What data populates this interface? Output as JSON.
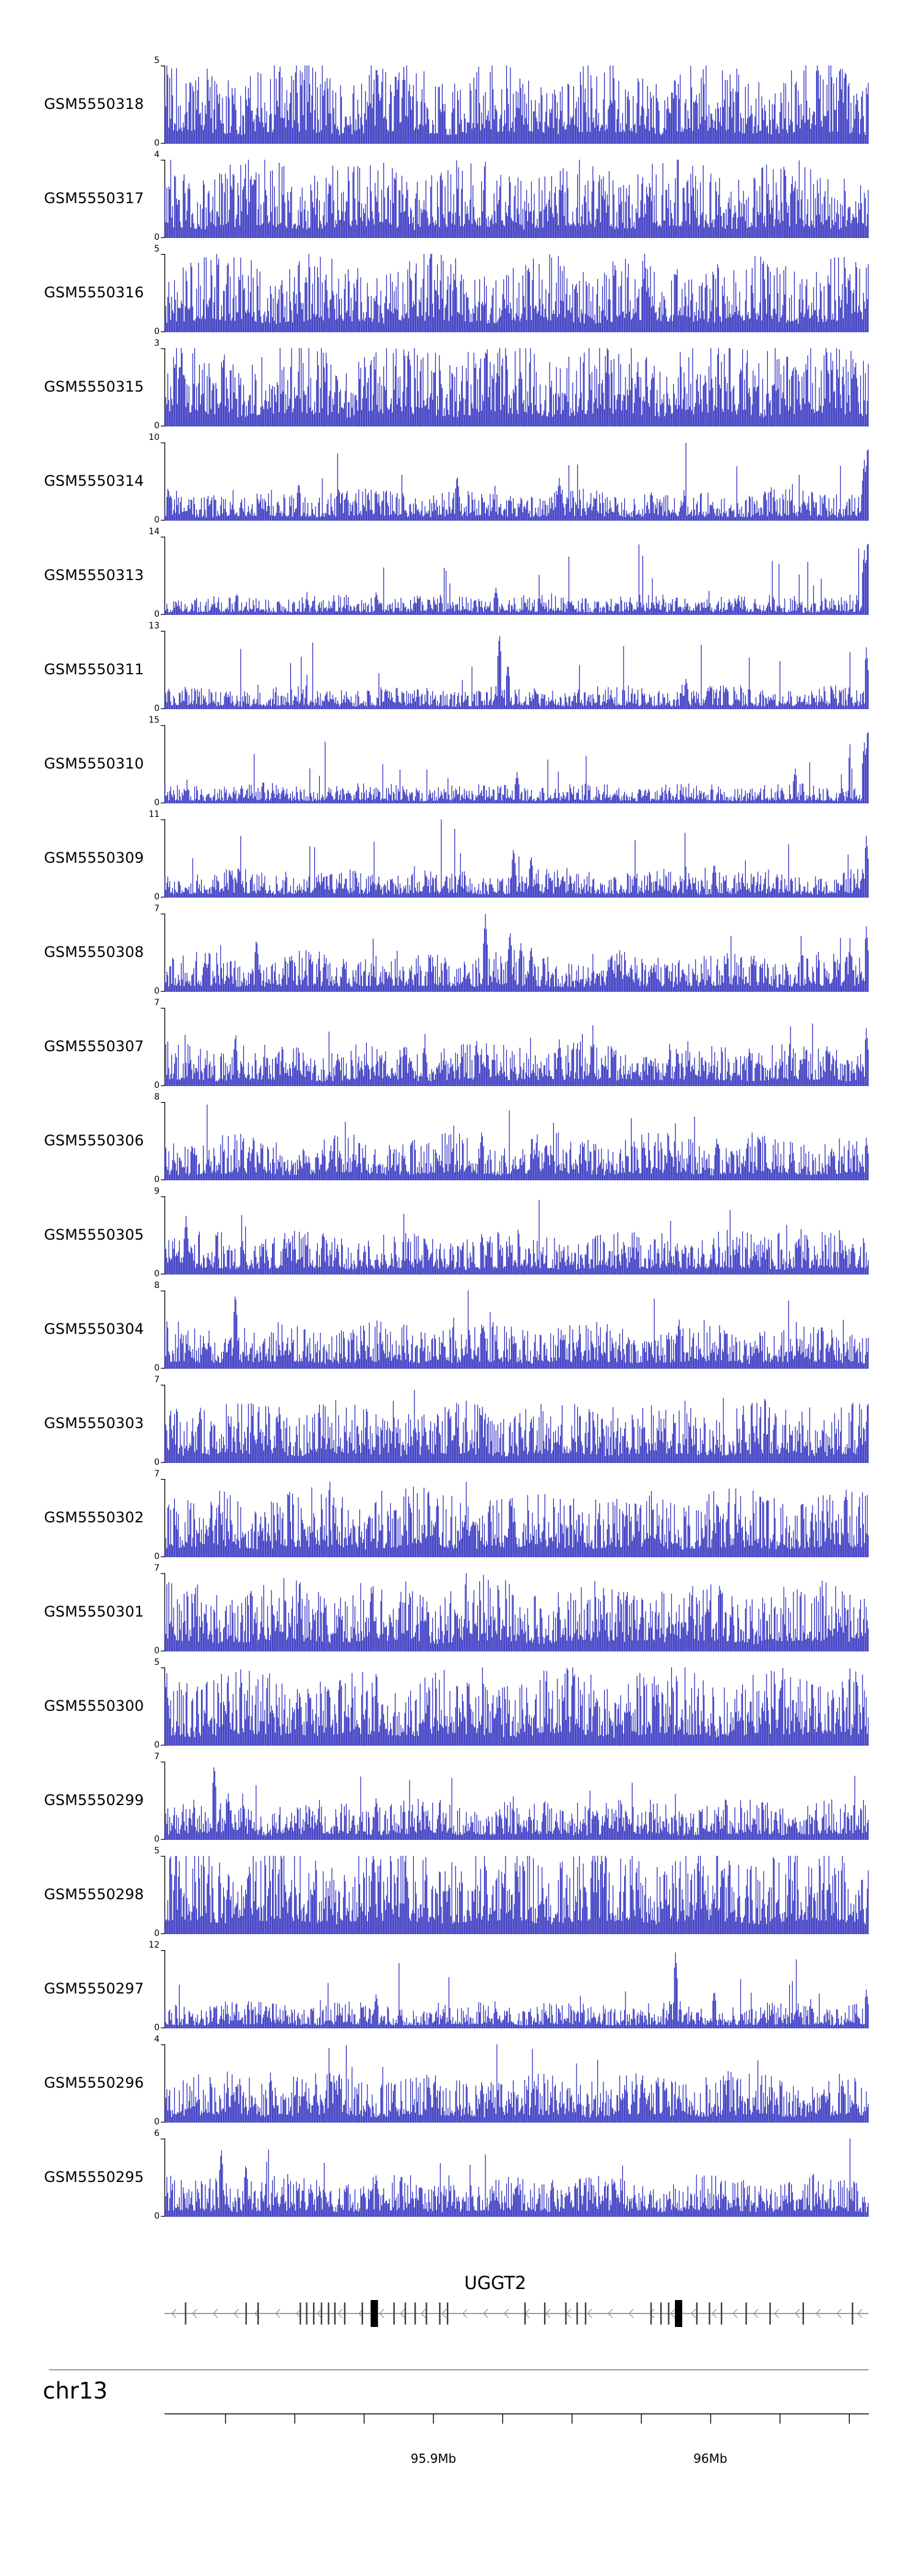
{
  "chart_data": {
    "type": "area",
    "title": "",
    "color": "#2121bb",
    "description": "Genome browser coverage tracks over chr13 around gene UGGT2",
    "x_axis": {
      "chromosome": "chr13",
      "start_mb": 95.803,
      "end_mb": 96.057,
      "tick_interval_mb": 0.025,
      "labeled_ticks": [
        {
          "mb": 95.9,
          "label": "95.9Mb"
        },
        {
          "mb": 96.0,
          "label": "96Mb"
        }
      ]
    },
    "gene_track": {
      "name": "UGGT2",
      "strand": "-",
      "exons_thin": [
        0.03,
        0.116,
        0.133,
        0.193,
        0.202,
        0.212,
        0.223,
        0.233,
        0.242,
        0.256,
        0.281,
        0.326,
        0.342,
        0.356,
        0.372,
        0.391,
        0.402,
        0.512,
        0.54,
        0.57,
        0.586,
        0.598,
        0.691,
        0.705,
        0.716,
        0.756,
        0.774,
        0.791,
        0.826,
        0.86,
        0.907,
        0.977
      ],
      "exons_thick": [
        0.298,
        0.73
      ]
    },
    "tracks": [
      {
        "label": "GSM5550318",
        "ymin": 0,
        "ymax": 5,
        "signal_profile": {
          "base": 0.52,
          "seed": 1
        },
        "spikes": []
      },
      {
        "label": "GSM5550317",
        "ymin": 0,
        "ymax": 4,
        "signal_profile": {
          "base": 0.5,
          "seed": 2
        },
        "spikes": []
      },
      {
        "label": "GSM5550316",
        "ymin": 0,
        "ymax": 5,
        "signal_profile": {
          "base": 0.5,
          "seed": 3
        },
        "spikes": []
      },
      {
        "label": "GSM5550315",
        "ymin": 0,
        "ymax": 3,
        "signal_profile": {
          "base": 0.55,
          "seed": 4
        },
        "spikes": []
      },
      {
        "label": "GSM5550314",
        "ymin": 0,
        "ymax": 10,
        "signal_profile": {
          "base": 0.2,
          "seed": 5
        },
        "spikes": [
          [
            0.19,
            0.5
          ],
          [
            0.415,
            0.6
          ],
          [
            0.56,
            0.55
          ],
          [
            0.993,
            0.8
          ],
          [
            0.998,
            1.0
          ]
        ]
      },
      {
        "label": "GSM5550313",
        "ymin": 0,
        "ymax": 14,
        "signal_profile": {
          "base": 0.13,
          "seed": 6
        },
        "spikes": [
          [
            0.3,
            0.3
          ],
          [
            0.47,
            0.35
          ],
          [
            0.993,
            0.85
          ],
          [
            0.998,
            1.0
          ]
        ]
      },
      {
        "label": "GSM5550311",
        "ymin": 0,
        "ymax": 13,
        "signal_profile": {
          "base": 0.15,
          "seed": 7
        },
        "spikes": [
          [
            0.475,
            1.0
          ],
          [
            0.487,
            0.6
          ],
          [
            0.74,
            0.4
          ],
          [
            0.996,
            0.8
          ]
        ]
      },
      {
        "label": "GSM5550310",
        "ymin": 0,
        "ymax": 15,
        "signal_profile": {
          "base": 0.13,
          "seed": 8
        },
        "spikes": [
          [
            0.5,
            0.4
          ],
          [
            0.895,
            0.45
          ],
          [
            0.993,
            0.8
          ],
          [
            0.998,
            1.0
          ]
        ]
      },
      {
        "label": "GSM5550309",
        "ymin": 0,
        "ymax": 11,
        "signal_profile": {
          "base": 0.18,
          "seed": 9
        },
        "spikes": [
          [
            0.495,
            0.65
          ],
          [
            0.52,
            0.55
          ],
          [
            0.78,
            0.45
          ],
          [
            0.996,
            0.8
          ]
        ]
      },
      {
        "label": "GSM5550308",
        "ymin": 0,
        "ymax": 7,
        "signal_profile": {
          "base": 0.26,
          "seed": 10
        },
        "spikes": [
          [
            0.13,
            0.7
          ],
          [
            0.455,
            1.0
          ],
          [
            0.49,
            0.8
          ],
          [
            0.52,
            0.6
          ],
          [
            0.996,
            0.85
          ]
        ]
      },
      {
        "label": "GSM5550307",
        "ymin": 0,
        "ymax": 7,
        "signal_profile": {
          "base": 0.28,
          "seed": 11
        },
        "spikes": [
          [
            0.1,
            0.65
          ],
          [
            0.34,
            0.55
          ],
          [
            0.56,
            0.6
          ],
          [
            0.83,
            0.5
          ],
          [
            0.996,
            0.75
          ]
        ]
      },
      {
        "label": "GSM5550306",
        "ymin": 0,
        "ymax": 8,
        "signal_profile": {
          "base": 0.3,
          "seed": 12
        },
        "spikes": [
          [
            0.45,
            0.65
          ],
          [
            0.68,
            0.5
          ],
          [
            0.996,
            0.55
          ]
        ]
      },
      {
        "label": "GSM5550305",
        "ymin": 0,
        "ymax": 9,
        "signal_profile": {
          "base": 0.28,
          "seed": 13
        },
        "spikes": [
          [
            0.03,
            0.75
          ],
          [
            0.45,
            0.55
          ],
          [
            0.9,
            0.5
          ]
        ]
      },
      {
        "label": "GSM5550304",
        "ymin": 0,
        "ymax": 8,
        "signal_profile": {
          "base": 0.3,
          "seed": 14
        },
        "spikes": [
          [
            0.1,
            1.0
          ],
          [
            0.45,
            0.6
          ],
          [
            0.73,
            0.65
          ]
        ]
      },
      {
        "label": "GSM5550303",
        "ymin": 0,
        "ymax": 7,
        "signal_profile": {
          "base": 0.4,
          "seed": 15
        },
        "spikes": [
          [
            0.05,
            0.75
          ],
          [
            0.52,
            0.6
          ]
        ]
      },
      {
        "label": "GSM5550302",
        "ymin": 0,
        "ymax": 7,
        "signal_profile": {
          "base": 0.44,
          "seed": 16
        },
        "spikes": []
      },
      {
        "label": "GSM5550301",
        "ymin": 0,
        "ymax": 7,
        "signal_profile": {
          "base": 0.46,
          "seed": 17
        },
        "spikes": []
      },
      {
        "label": "GSM5550300",
        "ymin": 0,
        "ymax": 5,
        "signal_profile": {
          "base": 0.5,
          "seed": 18
        },
        "spikes": []
      },
      {
        "label": "GSM5550299",
        "ymin": 0,
        "ymax": 7,
        "signal_profile": {
          "base": 0.26,
          "seed": 19
        },
        "spikes": [
          [
            0.07,
            1.0
          ],
          [
            0.09,
            0.6
          ],
          [
            0.3,
            0.55
          ]
        ]
      },
      {
        "label": "GSM5550298",
        "ymin": 0,
        "ymax": 5,
        "signal_profile": {
          "base": 0.58,
          "seed": 20
        },
        "spikes": []
      },
      {
        "label": "GSM5550297",
        "ymin": 0,
        "ymax": 12,
        "signal_profile": {
          "base": 0.17,
          "seed": 21
        },
        "spikes": [
          [
            0.3,
            0.45
          ],
          [
            0.725,
            1.0
          ],
          [
            0.78,
            0.5
          ],
          [
            0.996,
            0.5
          ]
        ]
      },
      {
        "label": "GSM5550296",
        "ymin": 0,
        "ymax": 4,
        "signal_profile": {
          "base": 0.32,
          "seed": 22
        },
        "spikes": [
          [
            0.15,
            0.65
          ],
          [
            0.45,
            0.55
          ],
          [
            0.7,
            0.6
          ]
        ]
      },
      {
        "label": "GSM5550295",
        "ymin": 0,
        "ymax": 6,
        "signal_profile": {
          "base": 0.27,
          "seed": 23
        },
        "spikes": [
          [
            0.08,
            0.9
          ],
          [
            0.115,
            0.7
          ],
          [
            0.3,
            0.55
          ],
          [
            0.55,
            0.5
          ]
        ]
      }
    ]
  }
}
